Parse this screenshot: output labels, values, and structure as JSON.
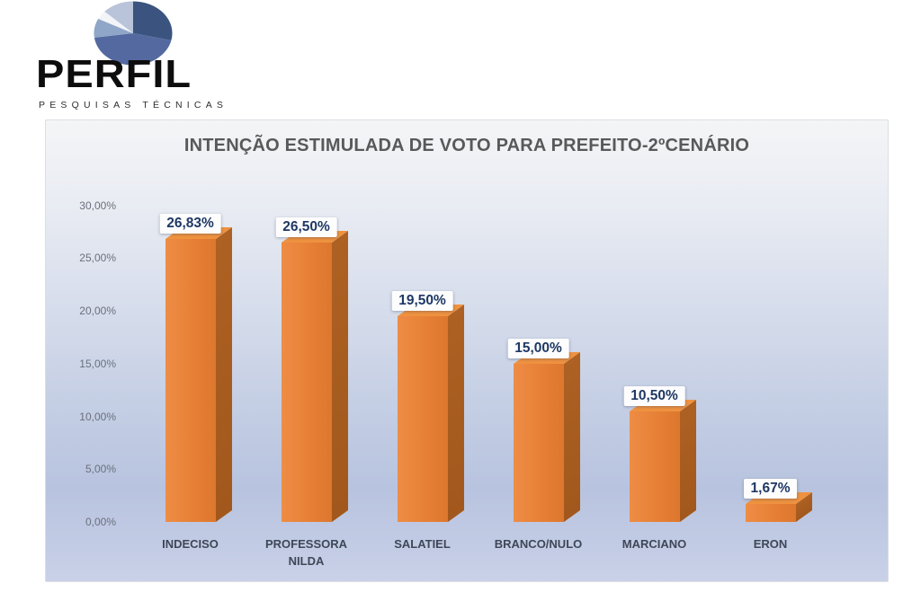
{
  "logo": {
    "name": "PERFIL",
    "subtitle": "PESQUISAS TÉCNICAS",
    "pie_colors": [
      "#3a547f",
      "#54699f",
      "#8fa6c8",
      "#f2f4f8",
      "#b9c4da"
    ]
  },
  "chart_data": {
    "type": "bar",
    "title": "INTENÇÃO ESTIMULADA DE VOTO PARA PREFEITO-2ºCENÁRIO",
    "categories": [
      "INDECISO",
      "PROFESSORA NILDA",
      "SALATIEL",
      "BRANCO/NULO",
      "MARCIANO",
      "ERON"
    ],
    "values": [
      26.83,
      26.5,
      19.5,
      15.0,
      10.5,
      1.67
    ],
    "value_labels": [
      "26,83%",
      "26,50%",
      "19,50%",
      "15,00%",
      "10,50%",
      "1,67%"
    ],
    "y_ticks": [
      "30,00%",
      "25,00%",
      "20,00%",
      "15,00%",
      "10,00%",
      "5,00%",
      "0,00%"
    ],
    "y_tick_values": [
      30,
      25,
      20,
      15,
      10,
      5,
      0
    ],
    "ylim": [
      0,
      30
    ],
    "xlabel": "",
    "ylabel": "",
    "grid": false,
    "legend": null,
    "bar_color": "#e67f35",
    "bar_side_color": "#a2581c",
    "bar_top_color": "#ef9240",
    "value_label_color": "#1f3864",
    "title_color": "#595959"
  }
}
